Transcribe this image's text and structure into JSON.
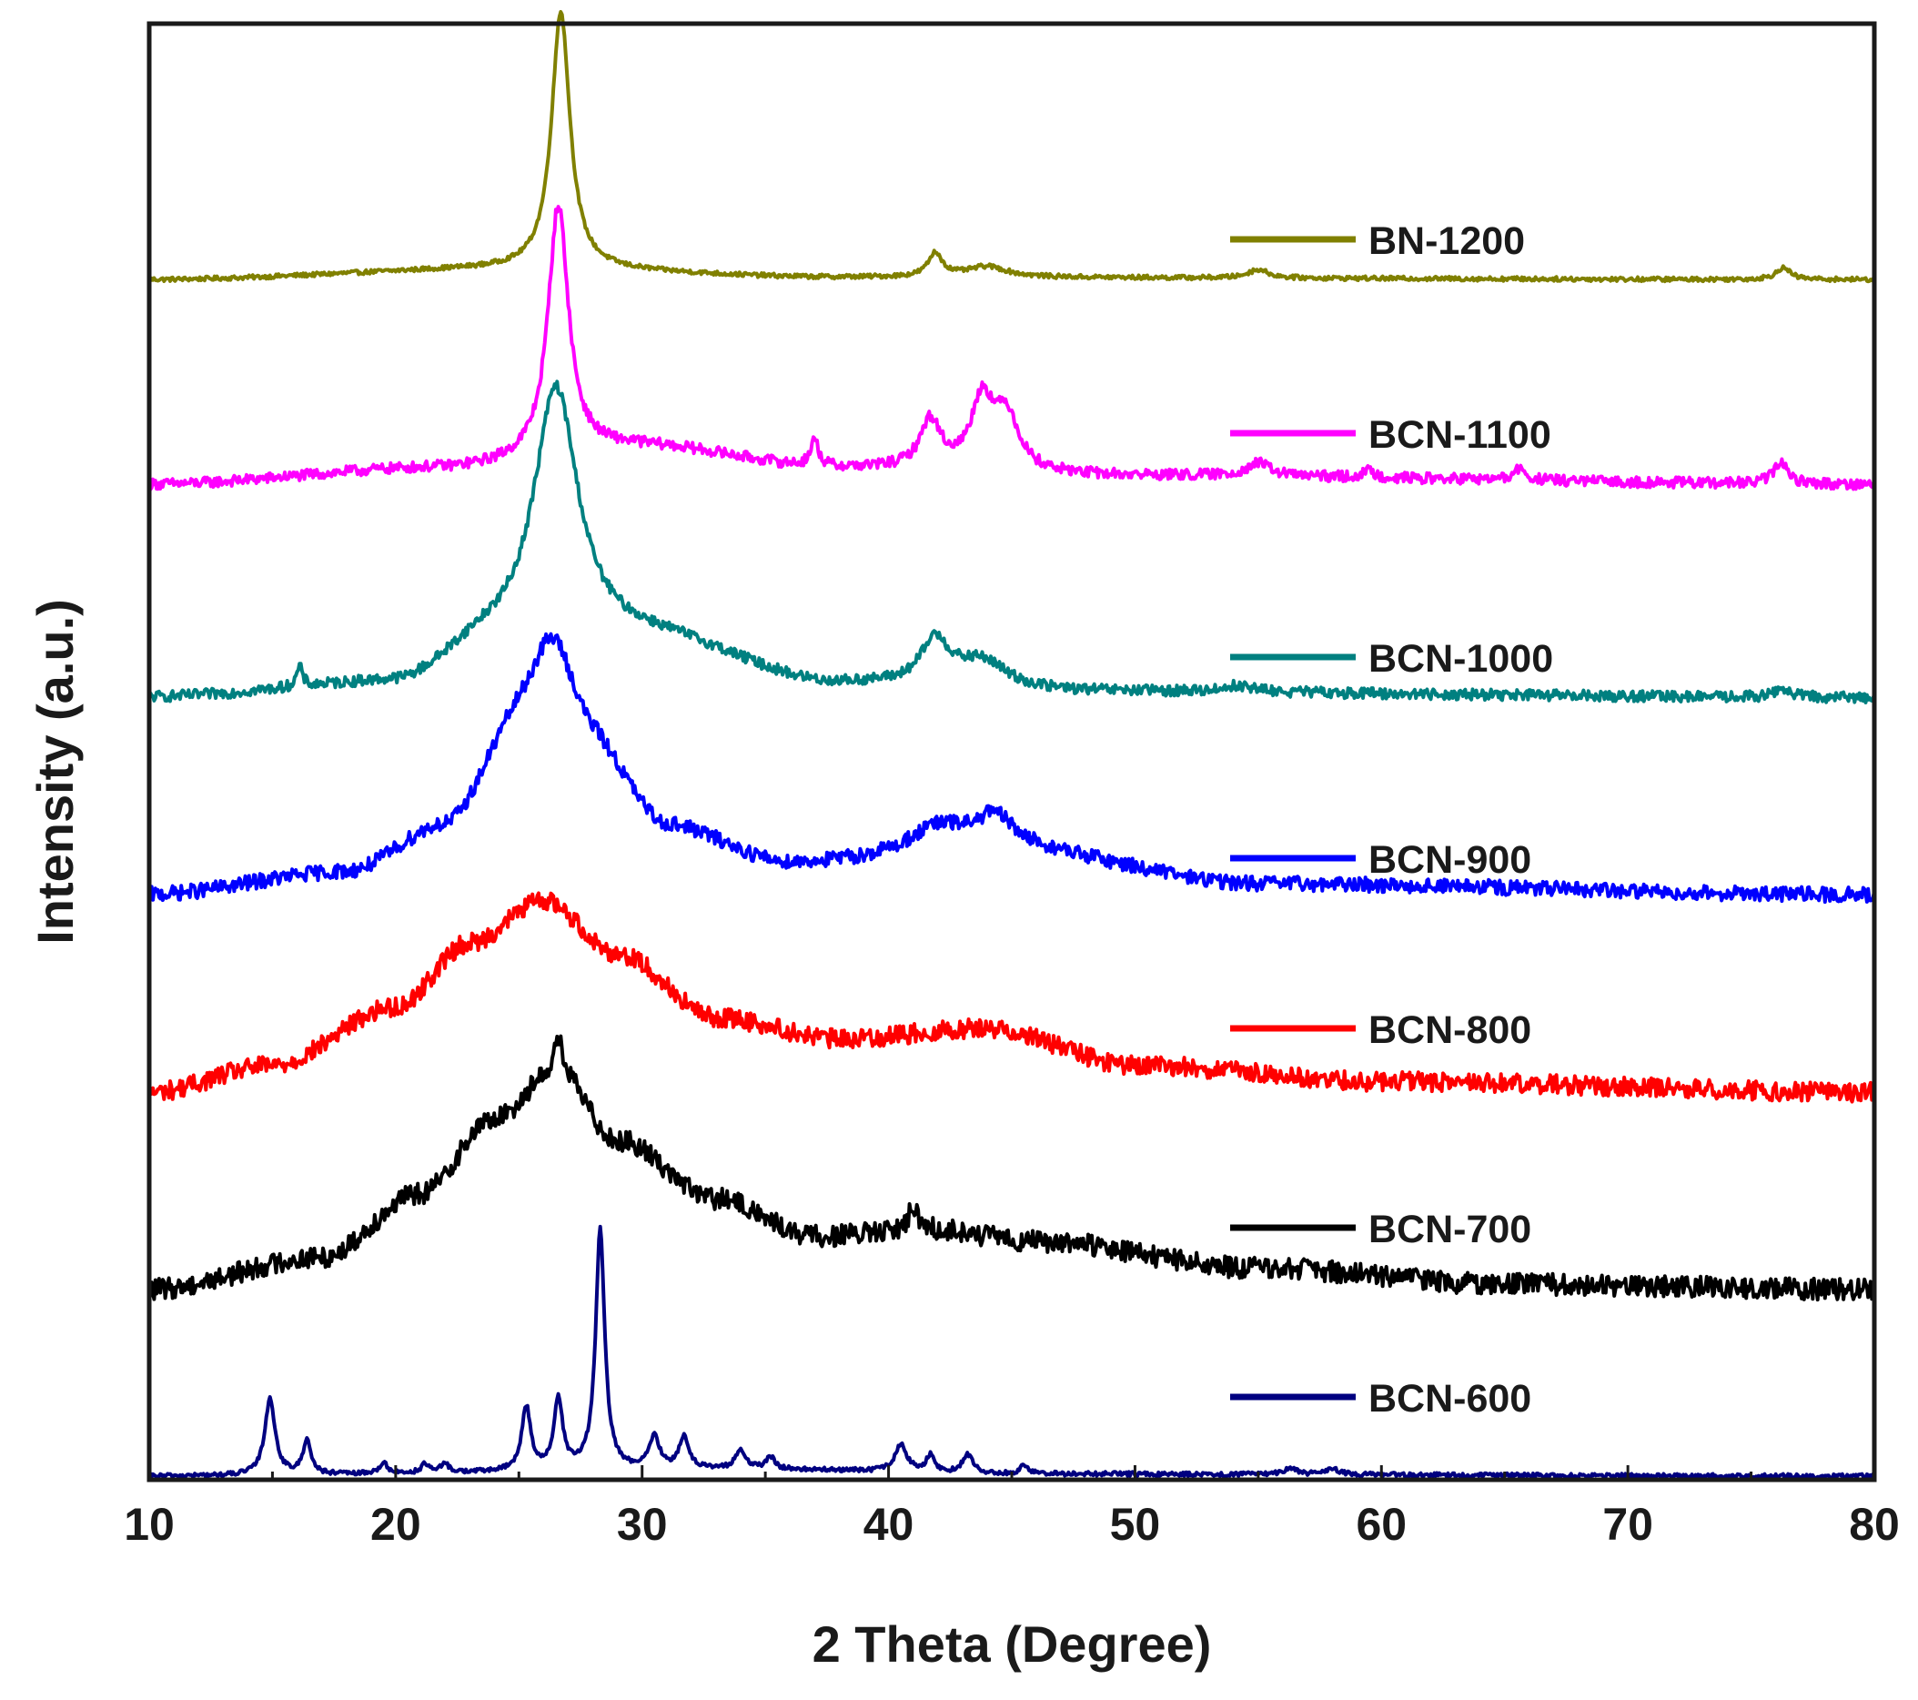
{
  "chart_data": {
    "type": "line",
    "title": "",
    "xlabel": "2 Theta (Degree)",
    "ylabel": "Intensity (a.u.)",
    "xlim": [
      10,
      80
    ],
    "ylim": [
      0,
      13.5
    ],
    "x_ticks": [
      10,
      20,
      30,
      40,
      50,
      60,
      70,
      80
    ],
    "y_ticks_shown": false,
    "grid": false,
    "legend_position": "inline-right-of-each-trace",
    "series": [
      {
        "name": "BN-1200",
        "color": "#808000",
        "baseline": 11.22,
        "noise": 0.02,
        "background": [
          [
            10,
            0.0
          ],
          [
            25,
            0.1
          ],
          [
            38,
            0.02
          ],
          [
            80,
            0.0
          ]
        ],
        "peaks": [
          {
            "center": 26.7,
            "height": 2.42,
            "width": 0.45
          },
          {
            "center": 41.9,
            "height": 0.22,
            "width": 0.35
          },
          {
            "center": 44.0,
            "height": 0.1,
            "width": 1.0
          },
          {
            "center": 55.0,
            "height": 0.08,
            "width": 0.5
          },
          {
            "center": 76.3,
            "height": 0.11,
            "width": 0.35
          }
        ]
      },
      {
        "name": "BCN-1100",
        "color": "#ff00ff",
        "baseline": 9.3,
        "noise": 0.05,
        "background": [
          [
            10,
            0.0
          ],
          [
            22,
            0.15
          ],
          [
            30,
            0.35
          ],
          [
            38,
            0.15
          ],
          [
            50,
            0.08
          ],
          [
            80,
            0.0
          ]
        ],
        "peaks": [
          {
            "center": 26.6,
            "height": 2.35,
            "width": 0.5
          },
          {
            "center": 37.0,
            "height": 0.25,
            "width": 0.2
          },
          {
            "center": 41.7,
            "height": 0.45,
            "width": 0.5
          },
          {
            "center": 43.8,
            "height": 0.65,
            "width": 0.55
          },
          {
            "center": 44.8,
            "height": 0.5,
            "width": 0.6
          },
          {
            "center": 55.0,
            "height": 0.12,
            "width": 0.6
          },
          {
            "center": 59.5,
            "height": 0.06,
            "width": 0.3
          },
          {
            "center": 65.6,
            "height": 0.1,
            "width": 0.3
          },
          {
            "center": 76.2,
            "height": 0.2,
            "width": 0.35
          }
        ]
      },
      {
        "name": "BCN-1000",
        "color": "#008080",
        "baseline": 7.3,
        "noise": 0.05,
        "background": [
          [
            10,
            0.0
          ],
          [
            20,
            0.12
          ],
          [
            24,
            0.5
          ],
          [
            30,
            0.55
          ],
          [
            38,
            0.12
          ],
          [
            48,
            0.05
          ],
          [
            80,
            0.0
          ]
        ],
        "peaks": [
          {
            "center": 16.1,
            "height": 0.18,
            "width": 0.15
          },
          {
            "center": 26.5,
            "height": 2.4,
            "width": 1.1
          },
          {
            "center": 41.9,
            "height": 0.42,
            "width": 0.7
          },
          {
            "center": 43.8,
            "height": 0.25,
            "width": 1.2
          },
          {
            "center": 54.2,
            "height": 0.06,
            "width": 0.8
          },
          {
            "center": 76.3,
            "height": 0.08,
            "width": 0.4
          }
        ]
      },
      {
        "name": "BCN-900",
        "color": "#0000ff",
        "baseline": 5.45,
        "noise": 0.07,
        "background": [
          [
            10,
            0.0
          ],
          [
            18,
            0.2
          ],
          [
            22,
            0.6
          ],
          [
            25,
            1.4
          ],
          [
            28,
            1.2
          ],
          [
            31,
            0.6
          ],
          [
            36,
            0.28
          ],
          [
            45,
            0.4
          ],
          [
            55,
            0.1
          ],
          [
            80,
            0.0
          ]
        ],
        "peaks": [
          {
            "center": 26.4,
            "height": 1.1,
            "width": 1.2
          },
          {
            "center": 42.0,
            "height": 0.25,
            "width": 1.5
          },
          {
            "center": 44.3,
            "height": 0.3,
            "width": 1.0
          }
        ]
      },
      {
        "name": "BCN-800",
        "color": "#ff0000",
        "baseline": 3.6,
        "noise": 0.09,
        "background": [
          [
            10,
            0.0
          ],
          [
            15,
            0.25
          ],
          [
            20,
            0.8
          ],
          [
            23,
            1.4
          ],
          [
            26,
            1.8
          ],
          [
            29,
            1.3
          ],
          [
            33,
            0.7
          ],
          [
            38,
            0.5
          ],
          [
            44,
            0.6
          ],
          [
            50,
            0.25
          ],
          [
            60,
            0.1
          ],
          [
            80,
            0.0
          ]
        ],
        "peaks": []
      },
      {
        "name": "BCN-700",
        "color": "#000000",
        "baseline": 1.75,
        "noise": 0.1,
        "background": [
          [
            10,
            0.0
          ],
          [
            17,
            0.3
          ],
          [
            21,
            0.9
          ],
          [
            24,
            1.6
          ],
          [
            26.5,
            2.05
          ],
          [
            29,
            1.4
          ],
          [
            33,
            0.85
          ],
          [
            37,
            0.5
          ],
          [
            42,
            0.55
          ],
          [
            46,
            0.45
          ],
          [
            55,
            0.2
          ],
          [
            65,
            0.05
          ],
          [
            80,
            0.0
          ]
        ],
        "peaks": [
          {
            "center": 26.6,
            "height": 0.3,
            "width": 0.2
          },
          {
            "center": 41.0,
            "height": 0.2,
            "width": 0.3
          }
        ]
      },
      {
        "name": "BCN-600",
        "color": "#000080",
        "baseline": 0.0,
        "noise": 0.02,
        "background": [
          [
            10,
            0.0
          ],
          [
            35,
            0.06
          ],
          [
            45,
            0.02
          ],
          [
            80,
            0.0
          ]
        ],
        "peaks": [
          {
            "center": 14.9,
            "height": 0.72,
            "width": 0.25
          },
          {
            "center": 16.4,
            "height": 0.32,
            "width": 0.2
          },
          {
            "center": 19.5,
            "height": 0.1,
            "width": 0.2
          },
          {
            "center": 21.2,
            "height": 0.08,
            "width": 0.2
          },
          {
            "center": 22.0,
            "height": 0.08,
            "width": 0.2
          },
          {
            "center": 25.3,
            "height": 0.6,
            "width": 0.22
          },
          {
            "center": 26.6,
            "height": 0.65,
            "width": 0.22
          },
          {
            "center": 28.3,
            "height": 2.25,
            "width": 0.22
          },
          {
            "center": 30.5,
            "height": 0.3,
            "width": 0.25
          },
          {
            "center": 31.7,
            "height": 0.3,
            "width": 0.25
          },
          {
            "center": 34.0,
            "height": 0.18,
            "width": 0.25
          },
          {
            "center": 35.2,
            "height": 0.12,
            "width": 0.2
          },
          {
            "center": 40.5,
            "height": 0.25,
            "width": 0.3
          },
          {
            "center": 41.7,
            "height": 0.16,
            "width": 0.2
          },
          {
            "center": 43.2,
            "height": 0.18,
            "width": 0.25
          },
          {
            "center": 45.5,
            "height": 0.08,
            "width": 0.2
          },
          {
            "center": 56.3,
            "height": 0.06,
            "width": 0.3
          },
          {
            "center": 58.0,
            "height": 0.06,
            "width": 0.3
          }
        ]
      }
    ]
  }
}
